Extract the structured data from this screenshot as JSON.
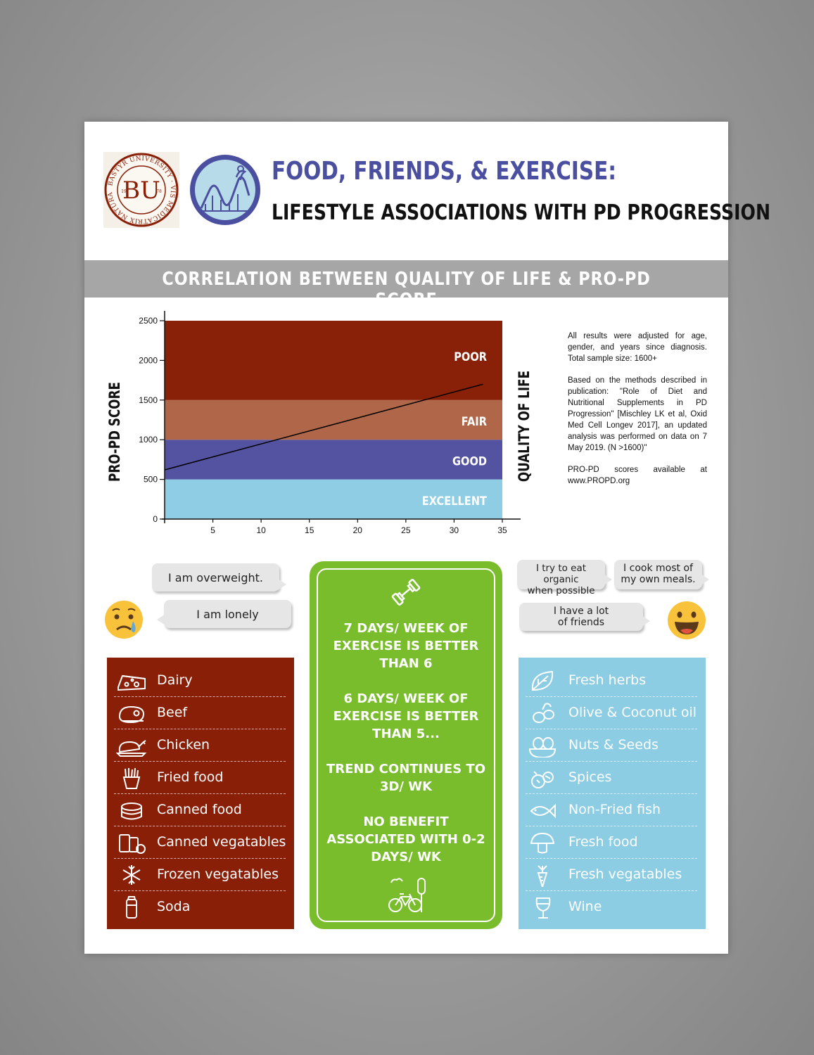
{
  "header": {
    "title_line1": "FOOD, FRIENDS, & EXERCISE:",
    "title_line2": "LIFESTYLE ASSOCIATIONS WITH PD PROGRESSION",
    "seal_text": "BASTYR UNIVERSITY · VIS MEDICATRIX NATURAE",
    "seal_year_left": "19",
    "seal_year_right": "78",
    "seal_monogram": "BU"
  },
  "band": {
    "title": "CORRELATION BETWEEN QUALITY OF LIFE & PRO-PD SCORE"
  },
  "chart_data": {
    "type": "line",
    "ylabel": "PRO-PD SCORE",
    "ylabel_right": "QUALITY OF LIFE",
    "xlabel": "",
    "xlim": [
      0,
      35
    ],
    "ylim": [
      0,
      2500
    ],
    "x_ticks": [
      5,
      10,
      15,
      20,
      25,
      30,
      35
    ],
    "y_ticks": [
      0,
      500,
      1000,
      1500,
      2000,
      2500
    ],
    "bands": [
      {
        "label": "EXCELLENT",
        "from": 0,
        "to": 500,
        "color": "#8ecde3"
      },
      {
        "label": "GOOD",
        "from": 500,
        "to": 1000,
        "color": "#5353a1"
      },
      {
        "label": "FAIR",
        "from": 1000,
        "to": 1500,
        "color": "#b06749"
      },
      {
        "label": "POOR",
        "from": 1500,
        "to": 2500,
        "color": "#892008"
      }
    ],
    "series": [
      {
        "x": [
          0,
          33
        ],
        "y": [
          620,
          1700
        ],
        "color": "#000000"
      }
    ],
    "grid": false
  },
  "notes": {
    "p1": "All results were adjusted for age, gender, and years since diagnosis. Total sample size: 1600+",
    "p2": "Based on the methods described in publication: \"Role of Diet and Nutritional Supplements in PD Progression\" [Mischley LK et al, Oxid Med Cell Longev 2017], an updated analysis was performed on data on 7 May 2019. (N >1600)\"",
    "p3": "PRO-PD scores available at www.PROPD.org"
  },
  "bubbles": {
    "overweight": "I am overweight.",
    "lonely": "I am lonely",
    "organic": [
      "I try to eat organic",
      "when possible"
    ],
    "cook": [
      "I cook most of",
      "my own meals."
    ],
    "friends": [
      "I have a lot",
      "of friends"
    ]
  },
  "exercise": {
    "p1": [
      "7 DAYS/ WEEK OF",
      "EXERCISE IS BETTER",
      "THAN 6"
    ],
    "p2": [
      "6 DAYS/ WEEK OF",
      "EXERCISE IS BETTER",
      "THAN 5..."
    ],
    "p3": [
      "TREND CONTINUES TO",
      "3D/ WK"
    ],
    "p4": [
      "NO BENEFIT",
      "ASSOCIATED WITH 0-2",
      "DAYS/ WK"
    ]
  },
  "bad_list": {
    "color": "#8a1f08",
    "items": [
      {
        "label": "Dairy",
        "icon": "cheese-icon"
      },
      {
        "label": "Beef",
        "icon": "steak-icon"
      },
      {
        "label": "Chicken",
        "icon": "chicken-icon"
      },
      {
        "label": "Fried food",
        "icon": "fries-icon"
      },
      {
        "label": "Canned food",
        "icon": "can-icon"
      },
      {
        "label": "Canned vegatables",
        "icon": "canned-vegetables-icon"
      },
      {
        "label": "Frozen vegatables",
        "icon": "snowflake-icon"
      },
      {
        "label": "Soda",
        "icon": "soda-icon"
      }
    ]
  },
  "good_list": {
    "color": "#8ccde3",
    "items": [
      {
        "label": "Fresh herbs",
        "icon": "leaf-icon"
      },
      {
        "label": "Olive & Coconut oil",
        "icon": "olive-icon"
      },
      {
        "label": "Nuts & Seeds",
        "icon": "nuts-icon"
      },
      {
        "label": "Spices",
        "icon": "spices-icon"
      },
      {
        "label": "Non-Fried fish",
        "icon": "fish-icon"
      },
      {
        "label": "Fresh food",
        "icon": "mushroom-icon"
      },
      {
        "label": "Fresh vegatables",
        "icon": "carrot-icon"
      },
      {
        "label": "Wine",
        "icon": "wine-icon"
      }
    ]
  }
}
